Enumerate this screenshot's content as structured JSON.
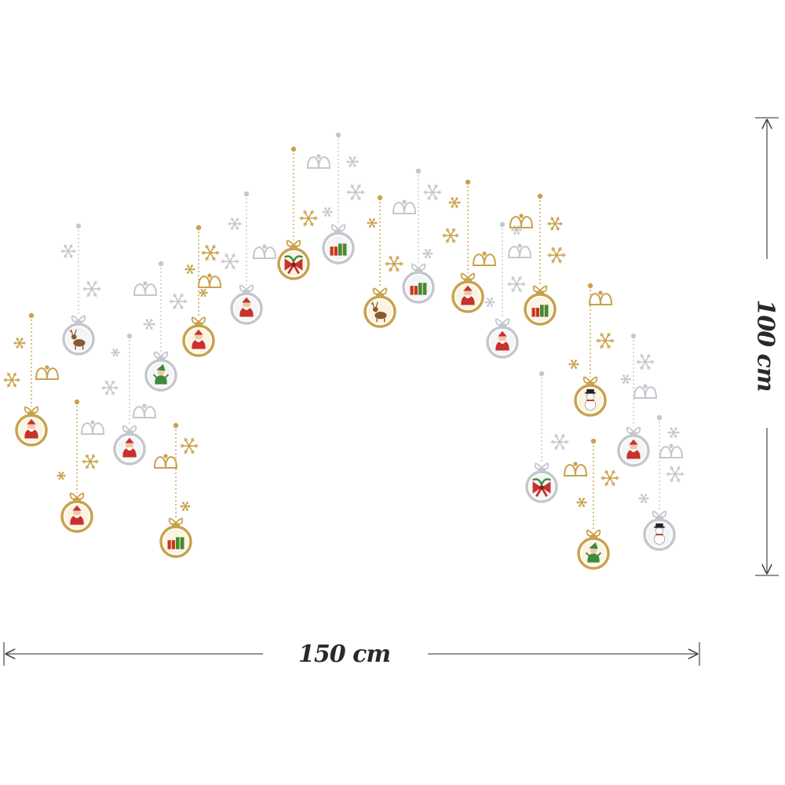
{
  "dimensions": {
    "width_label": "150 cm",
    "height_label": "100 cm"
  },
  "colors": {
    "gold": "#c9a24d",
    "silver": "#c4c7cc",
    "red": "#c8322d",
    "green": "#3f8a3c",
    "skin": "#f1c7a5",
    "brown": "#8a5a2b",
    "arrow": "#444444"
  },
  "ornaments": [
    {
      "tone": "silver",
      "motif": "reindeer"
    },
    {
      "tone": "gold",
      "motif": "santa"
    },
    {
      "tone": "gold",
      "motif": "santa"
    },
    {
      "tone": "silver",
      "motif": "elf"
    },
    {
      "tone": "silver",
      "motif": "santa"
    },
    {
      "tone": "gold",
      "motif": "gifts"
    },
    {
      "tone": "gold",
      "motif": "santa"
    },
    {
      "tone": "silver",
      "motif": "santa"
    },
    {
      "tone": "gold",
      "motif": "bow"
    },
    {
      "tone": "silver",
      "motif": "gifts"
    },
    {
      "tone": "gold",
      "motif": "reindeer"
    },
    {
      "tone": "silver",
      "motif": "gifts"
    },
    {
      "tone": "gold",
      "motif": "santa"
    },
    {
      "tone": "silver",
      "motif": "santa"
    },
    {
      "tone": "gold",
      "motif": "gifts"
    },
    {
      "tone": "gold",
      "motif": "snowman"
    },
    {
      "tone": "silver",
      "motif": "bow"
    },
    {
      "tone": "silver",
      "motif": "santa"
    },
    {
      "tone": "gold",
      "motif": "elf"
    },
    {
      "tone": "silver",
      "motif": "snowman"
    }
  ]
}
